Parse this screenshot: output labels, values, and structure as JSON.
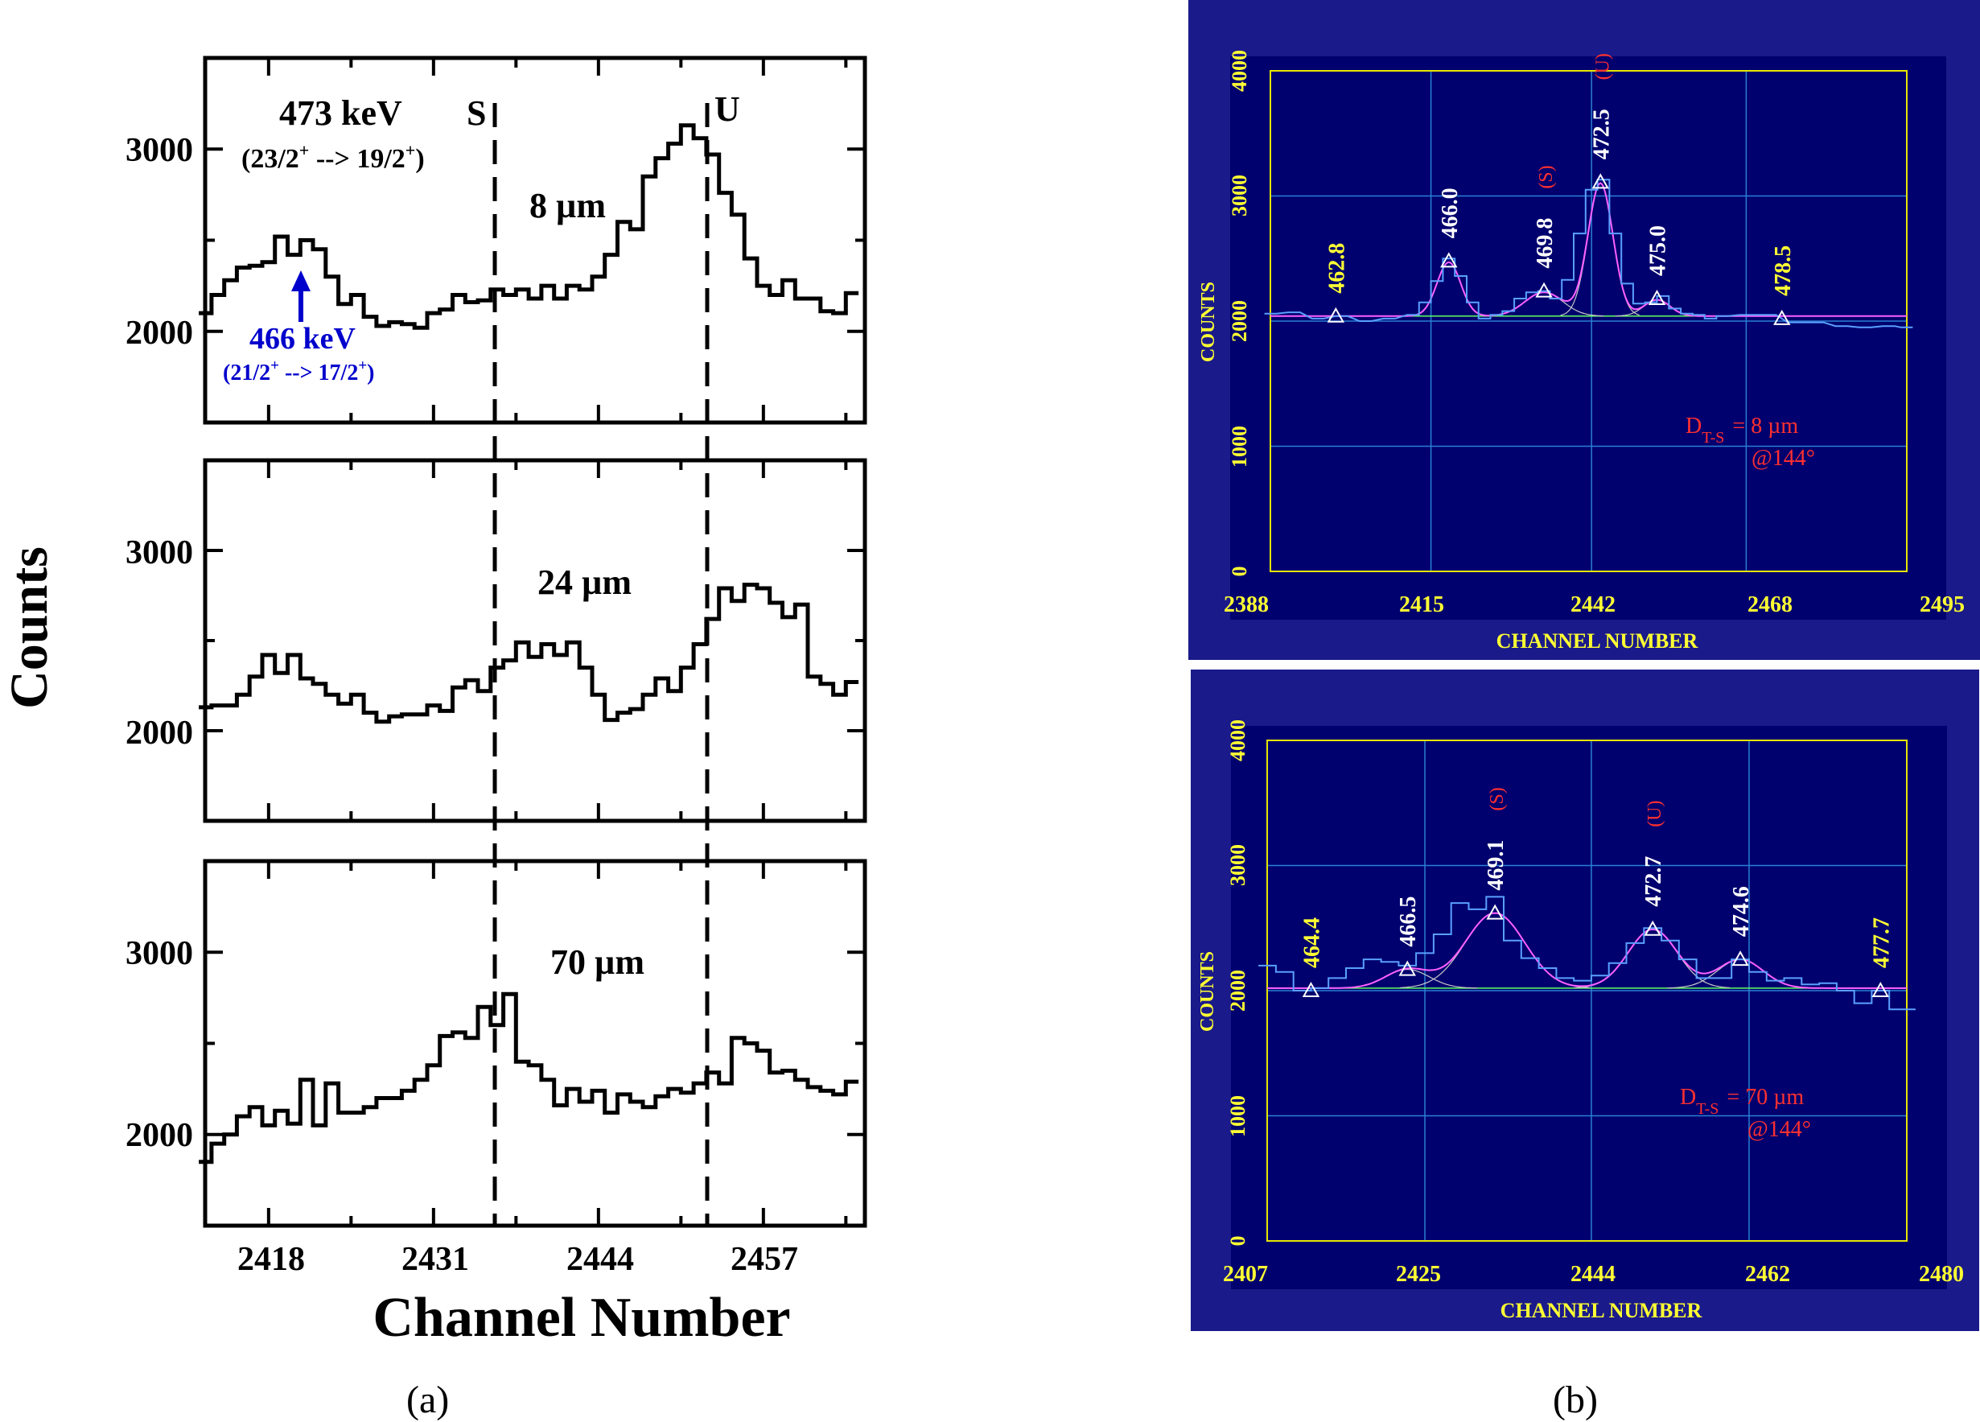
{
  "panel_a": {
    "caption": "(a)",
    "ylabel": "Counts",
    "xlabel": "Channel Number",
    "xticks": [
      "2418",
      "2431",
      "2444",
      "2457"
    ],
    "yticks": [
      "2000",
      "3000"
    ],
    "marker_S": "S",
    "marker_U": "U",
    "annotation_473": "473 keV",
    "annotation_473_transition": "(23/2+ --> 19/2+)",
    "annotation_466": "466 keV",
    "annotation_466_transition": "(21/2+ --> 17/2+)",
    "panel_labels": [
      "8 µm",
      "24 µm",
      "70 µm"
    ]
  },
  "panel_b": {
    "caption": "(b)",
    "ylabel": "COUNTS",
    "xlabel": "CHANNEL NUMBER",
    "yticks": [
      "0",
      "1000",
      "2000",
      "3000",
      "4000"
    ],
    "top": {
      "xticks": [
        "2388",
        "2415",
        "2442",
        "2468",
        "2495"
      ],
      "peaks": [
        "462.8",
        "466.0",
        "469.8",
        "472.5",
        "475.0",
        "478.5"
      ],
      "peak_tags": {
        "469.8": "(S)",
        "472.5": "(U)"
      },
      "dist_label": "D",
      "dist_sub": "T-S",
      "dist_value": "= 8 µm",
      "angle": "@144°"
    },
    "bottom": {
      "xticks": [
        "2407",
        "2425",
        "2444",
        "2462",
        "2480"
      ],
      "peaks": [
        "464.4",
        "466.5",
        "469.1",
        "472.7",
        "474.6",
        "477.7"
      ],
      "peak_tags": {
        "469.1": "(S)",
        "472.7": "(U)"
      },
      "dist_label": "D",
      "dist_sub": "T-S",
      "dist_value": "= 70 µm",
      "angle": "@144°"
    },
    "colors": {
      "background": "#00006e",
      "frame": "#1a1a8a",
      "axis": "#e6e600",
      "grid": "#2a7fd4",
      "data": "#5aa0ff",
      "fit": "#ff60ff",
      "label": "#ffffff",
      "tag": "#ff3030",
      "tick_text": "#ffff33"
    }
  },
  "chart_data": [
    {
      "type": "line",
      "title": "8 µm",
      "xlabel": "Channel Number",
      "ylabel": "Counts",
      "xlim": [
        2413,
        2465
      ],
      "ylim": [
        1500,
        3500
      ],
      "x": [
        2413,
        2414,
        2415,
        2416,
        2417,
        2418,
        2419,
        2420,
        2421,
        2422,
        2423,
        2424,
        2425,
        2426,
        2427,
        2428,
        2429,
        2430,
        2431,
        2432,
        2433,
        2434,
        2435,
        2436,
        2437,
        2438,
        2439,
        2440,
        2441,
        2442,
        2443,
        2444,
        2445,
        2446,
        2447,
        2448,
        2449,
        2450,
        2451,
        2452,
        2453,
        2454,
        2455,
        2456,
        2457,
        2458,
        2459,
        2460,
        2461,
        2462,
        2463,
        2464
      ],
      "y": [
        2100,
        2200,
        2280,
        2350,
        2360,
        2380,
        2520,
        2420,
        2500,
        2450,
        2300,
        2150,
        2200,
        2080,
        2030,
        2050,
        2040,
        2020,
        2100,
        2120,
        2200,
        2160,
        2170,
        2230,
        2200,
        2230,
        2180,
        2250,
        2180,
        2250,
        2230,
        2300,
        2420,
        2600,
        2560,
        2850,
        2950,
        3030,
        3130,
        3060,
        2970,
        2760,
        2640,
        2400,
        2250,
        2200,
        2280,
        2180,
        2180,
        2110,
        2100,
        2210
      ]
    },
    {
      "type": "line",
      "title": "24 µm",
      "xlabel": "Channel Number",
      "ylabel": "Counts",
      "xlim": [
        2413,
        2465
      ],
      "ylim": [
        1500,
        3500
      ],
      "x": [
        2413,
        2414,
        2415,
        2416,
        2417,
        2418,
        2419,
        2420,
        2421,
        2422,
        2423,
        2424,
        2425,
        2426,
        2427,
        2428,
        2429,
        2430,
        2431,
        2432,
        2433,
        2434,
        2435,
        2436,
        2437,
        2438,
        2439,
        2440,
        2441,
        2442,
        2443,
        2444,
        2445,
        2446,
        2447,
        2448,
        2449,
        2450,
        2451,
        2452,
        2453,
        2454,
        2455,
        2456,
        2457,
        2458,
        2459,
        2460,
        2461,
        2462,
        2463,
        2464
      ],
      "y": [
        2130,
        2140,
        2140,
        2200,
        2300,
        2420,
        2320,
        2420,
        2290,
        2260,
        2200,
        2150,
        2200,
        2100,
        2050,
        2080,
        2090,
        2090,
        2140,
        2110,
        2240,
        2280,
        2220,
        2350,
        2390,
        2490,
        2410,
        2480,
        2420,
        2490,
        2350,
        2200,
        2060,
        2100,
        2120,
        2200,
        2290,
        2220,
        2350,
        2480,
        2620,
        2790,
        2720,
        2810,
        2790,
        2710,
        2630,
        2700,
        2300,
        2260,
        2200,
        2270
      ]
    },
    {
      "type": "line",
      "title": "70 µm",
      "xlabel": "Channel Number",
      "ylabel": "Counts",
      "xlim": [
        2413,
        2465
      ],
      "ylim": [
        1500,
        3500
      ],
      "x": [
        2413,
        2414,
        2415,
        2416,
        2417,
        2418,
        2419,
        2420,
        2421,
        2422,
        2423,
        2424,
        2425,
        2426,
        2427,
        2428,
        2429,
        2430,
        2431,
        2432,
        2433,
        2434,
        2435,
        2436,
        2437,
        2438,
        2439,
        2440,
        2441,
        2442,
        2443,
        2444,
        2445,
        2446,
        2447,
        2448,
        2449,
        2450,
        2451,
        2452,
        2453,
        2454,
        2455,
        2456,
        2457,
        2458,
        2459,
        2460,
        2461,
        2462,
        2463,
        2464
      ],
      "y": [
        1850,
        1950,
        2000,
        2100,
        2150,
        2050,
        2130,
        2060,
        2300,
        2050,
        2280,
        2120,
        2120,
        2150,
        2200,
        2200,
        2240,
        2300,
        2380,
        2540,
        2560,
        2530,
        2700,
        2600,
        2770,
        2400,
        2380,
        2300,
        2160,
        2250,
        2180,
        2240,
        2120,
        2220,
        2180,
        2150,
        2210,
        2250,
        2230,
        2280,
        2340,
        2280,
        2530,
        2500,
        2460,
        2340,
        2350,
        2300,
        2260,
        2240,
        2220,
        2290
      ]
    },
    {
      "type": "line",
      "title": "",
      "xlabel": "CHANNEL NUMBER",
      "ylabel": "COUNTS",
      "xlim": [
        2388,
        2495
      ],
      "ylim": [
        0,
        4000
      ],
      "series": [
        {
          "x": [
            2388,
            2392,
            2396,
            2400,
            2404,
            2408,
            2412,
            2414,
            2416,
            2418,
            2420,
            2422,
            2424,
            2426,
            2428,
            2430,
            2432,
            2434,
            2436,
            2438,
            2440,
            2442,
            2444,
            2446,
            2448,
            2450,
            2452,
            2454,
            2456,
            2458,
            2460,
            2462,
            2464,
            2468,
            2472,
            2476,
            2480,
            2484,
            2488,
            2492,
            2495
          ],
          "y": [
            2060,
            2070,
            2020,
            2040,
            2000,
            2020,
            2050,
            2150,
            2320,
            2500,
            2360,
            2150,
            2020,
            2050,
            2080,
            2180,
            2230,
            2240,
            2180,
            2330,
            2700,
            3050,
            3130,
            2700,
            2300,
            2140,
            2150,
            2200,
            2100,
            2060,
            2050,
            2020,
            2040,
            2050,
            2050,
            1990,
            1990,
            1960,
            1950,
            1960,
            1950
          ]
        }
      ]
    },
    {
      "type": "line",
      "title": "",
      "xlabel": "CHANNEL NUMBER",
      "ylabel": "COUNTS",
      "xlim": [
        2407,
        2480
      ],
      "ylim": [
        0,
        4000
      ],
      "series": [
        {
          "x": [
            2407,
            2409,
            2411,
            2413,
            2415,
            2417,
            2419,
            2421,
            2423,
            2425,
            2427,
            2429,
            2431,
            2433,
            2435,
            2437,
            2439,
            2441,
            2443,
            2445,
            2447,
            2449,
            2451,
            2453,
            2455,
            2457,
            2459,
            2461,
            2463,
            2465,
            2467,
            2469,
            2471,
            2473,
            2475,
            2477,
            2479,
            2480
          ],
          "y": [
            2200,
            2150,
            2000,
            2020,
            2100,
            2180,
            2250,
            2230,
            2200,
            2300,
            2450,
            2700,
            2650,
            2750,
            2400,
            2260,
            2180,
            2100,
            2080,
            2120,
            2220,
            2380,
            2500,
            2400,
            2250,
            2100,
            2100,
            2250,
            2150,
            2080,
            2100,
            2050,
            2060,
            2000,
            1900,
            2000,
            1850,
            1850
          ]
        }
      ]
    }
  ]
}
